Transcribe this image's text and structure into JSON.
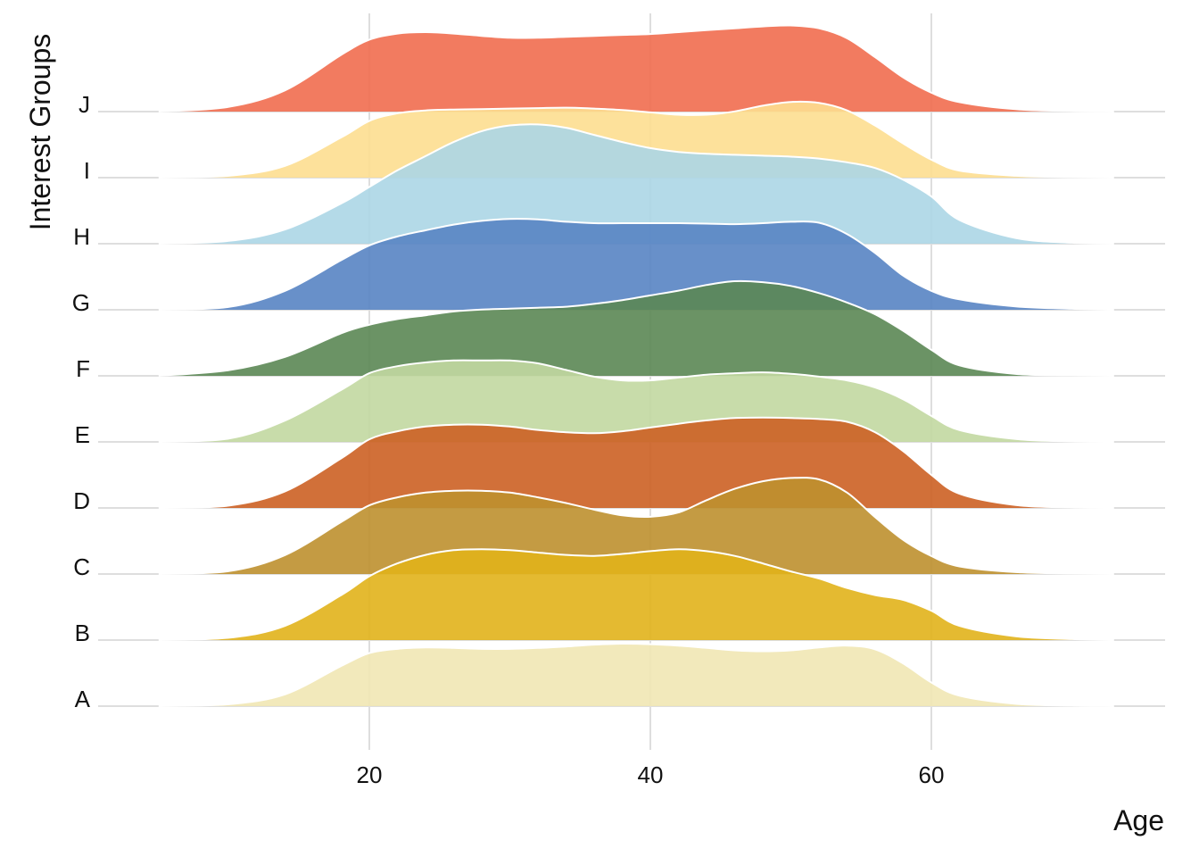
{
  "chart_data": {
    "type": "ridgeline",
    "title": "",
    "xlabel": "Age",
    "ylabel": "Interest Groups",
    "xlim": [
      4,
      74
    ],
    "x_ticks": [
      20,
      40,
      60
    ],
    "grid": true,
    "legend": "none",
    "categories": [
      "A",
      "B",
      "C",
      "D",
      "E",
      "F",
      "G",
      "H",
      "I",
      "J"
    ],
    "x": [
      5,
      10,
      14,
      18,
      20,
      22,
      24,
      26,
      28,
      30,
      32,
      34,
      36,
      38,
      40,
      42,
      44,
      46,
      48,
      50,
      52,
      54,
      56,
      58,
      60,
      62,
      66,
      70,
      73
    ],
    "series": [
      {
        "values": [
          0,
          0.04,
          0.25,
          0.85,
          1.12,
          1.21,
          1.24,
          1.23,
          1.21,
          1.21,
          1.23,
          1.26,
          1.3,
          1.32,
          1.31,
          1.28,
          1.23,
          1.18,
          1.16,
          1.18,
          1.24,
          1.28,
          1.2,
          0.9,
          0.5,
          0.22,
          0.05,
          0.01,
          0
        ],
        "color": "#F1E7B4"
      },
      {
        "values": [
          0,
          0.05,
          0.3,
          0.95,
          1.35,
          1.62,
          1.8,
          1.9,
          1.92,
          1.9,
          1.85,
          1.8,
          1.78,
          1.82,
          1.88,
          1.92,
          1.88,
          1.78,
          1.62,
          1.45,
          1.3,
          1.1,
          0.95,
          0.85,
          0.62,
          0.3,
          0.08,
          0.02,
          0
        ],
        "color": "#E1B31B"
      },
      {
        "values": [
          0,
          0.06,
          0.4,
          1.1,
          1.45,
          1.62,
          1.72,
          1.76,
          1.76,
          1.72,
          1.62,
          1.5,
          1.36,
          1.24,
          1.21,
          1.3,
          1.56,
          1.8,
          1.96,
          2.03,
          2.0,
          1.72,
          1.2,
          0.72,
          0.38,
          0.16,
          0.04,
          0.01,
          0
        ],
        "color": "#BE902F"
      },
      {
        "values": [
          0,
          0.05,
          0.35,
          1.05,
          1.45,
          1.62,
          1.72,
          1.76,
          1.76,
          1.72,
          1.65,
          1.6,
          1.58,
          1.62,
          1.7,
          1.78,
          1.85,
          1.9,
          1.91,
          1.9,
          1.88,
          1.82,
          1.6,
          1.2,
          0.7,
          0.3,
          0.06,
          0.01,
          0
        ],
        "color": "#CC6124"
      },
      {
        "values": [
          0,
          0.07,
          0.45,
          1.1,
          1.45,
          1.6,
          1.68,
          1.72,
          1.72,
          1.72,
          1.66,
          1.52,
          1.38,
          1.3,
          1.3,
          1.36,
          1.42,
          1.45,
          1.47,
          1.44,
          1.38,
          1.3,
          1.15,
          0.9,
          0.55,
          0.25,
          0.06,
          0.01,
          0
        ],
        "color": "#C2D8A1"
      },
      {
        "values": [
          0,
          0.12,
          0.4,
          0.9,
          1.08,
          1.2,
          1.28,
          1.36,
          1.4,
          1.42,
          1.44,
          1.46,
          1.52,
          1.6,
          1.7,
          1.8,
          1.92,
          2.0,
          1.98,
          1.9,
          1.75,
          1.55,
          1.3,
          0.95,
          0.55,
          0.22,
          0.04,
          0.01,
          0
        ],
        "color": "#5B8754"
      },
      {
        "values": [
          0,
          0.06,
          0.4,
          1.05,
          1.36,
          1.55,
          1.68,
          1.8,
          1.88,
          1.92,
          1.91,
          1.86,
          1.83,
          1.83,
          1.83,
          1.83,
          1.82,
          1.81,
          1.83,
          1.86,
          1.84,
          1.6,
          1.2,
          0.72,
          0.4,
          0.22,
          0.07,
          0.02,
          0
        ],
        "color": "#5884C3"
      },
      {
        "values": [
          0,
          0.06,
          0.3,
          0.85,
          1.2,
          1.55,
          1.85,
          2.15,
          2.38,
          2.5,
          2.52,
          2.45,
          2.3,
          2.15,
          2.02,
          1.94,
          1.9,
          1.88,
          1.86,
          1.84,
          1.8,
          1.72,
          1.6,
          1.35,
          1.0,
          0.5,
          0.12,
          0.02,
          0
        ],
        "color": "#ACD6E6"
      },
      {
        "values": [
          0,
          0.04,
          0.25,
          0.85,
          1.2,
          1.36,
          1.42,
          1.44,
          1.45,
          1.46,
          1.47,
          1.48,
          1.46,
          1.43,
          1.38,
          1.33,
          1.33,
          1.4,
          1.52,
          1.6,
          1.58,
          1.42,
          1.1,
          0.72,
          0.38,
          0.15,
          0.04,
          0.01,
          0
        ],
        "color": "#FDDE90"
      },
      {
        "values": [
          0,
          0.1,
          0.45,
          1.2,
          1.52,
          1.65,
          1.68,
          1.65,
          1.6,
          1.56,
          1.56,
          1.58,
          1.6,
          1.62,
          1.64,
          1.68,
          1.72,
          1.76,
          1.8,
          1.82,
          1.76,
          1.55,
          1.15,
          0.72,
          0.4,
          0.2,
          0.05,
          0.01,
          0
        ],
        "color": "#F16D4F"
      }
    ]
  }
}
